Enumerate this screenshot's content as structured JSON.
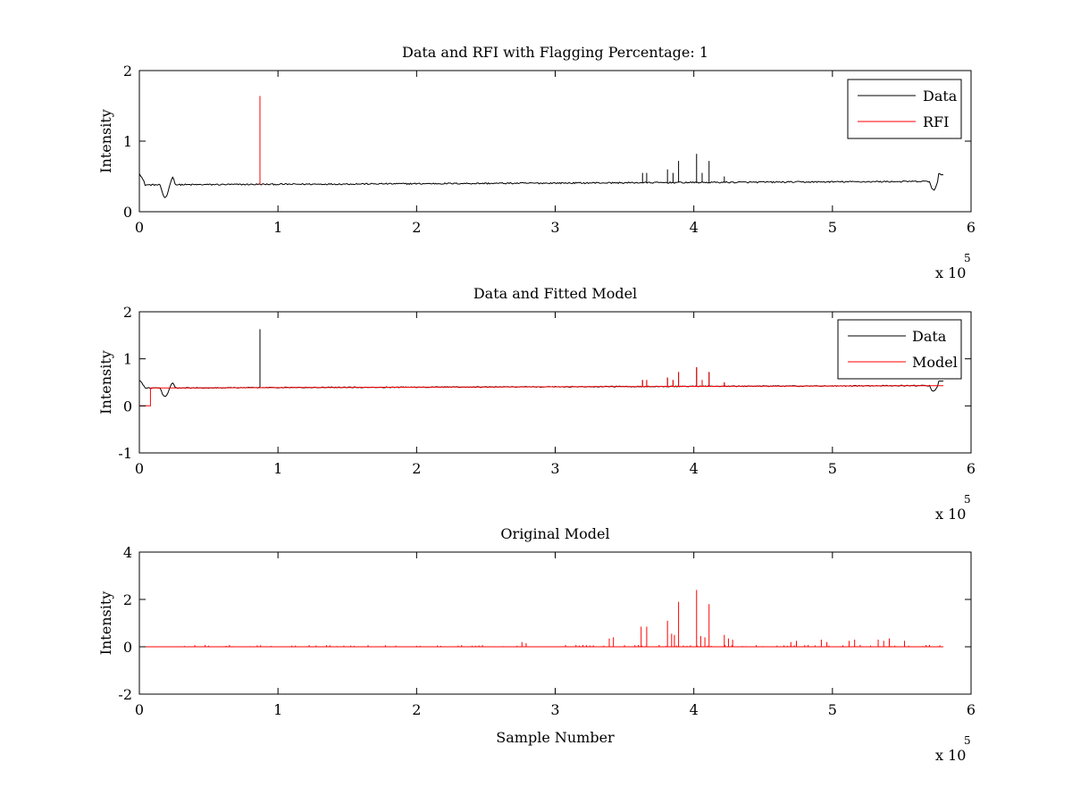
{
  "figure": {
    "background": "#ffffff"
  },
  "chart_data": [
    {
      "type": "line",
      "title": "Data and RFI with Flagging Percentage: 1",
      "xlabel": "",
      "ylabel": "Intensity",
      "xlim": [
        0,
        600000
      ],
      "ylim": [
        0,
        2
      ],
      "xticks": [
        "0",
        "1",
        "2",
        "3",
        "4",
        "5",
        "6"
      ],
      "yticks": [
        "0",
        "1",
        "2"
      ],
      "x_multiplier": {
        "base": "x 10",
        "exponent": "5"
      },
      "grid": false,
      "legend": {
        "position": "top-right",
        "entries": [
          "Data",
          "RFI"
        ]
      },
      "series": [
        {
          "name": "Data",
          "color": "#000000",
          "shape": "noisy-baseline",
          "baseline_start": 0.38,
          "baseline_end": 0.43,
          "x_end": 580000,
          "spikes": [
            [
              87000,
              1.63
            ],
            [
              363000,
              0.55
            ],
            [
              366000,
              0.55
            ],
            [
              381000,
              0.6
            ],
            [
              385000,
              0.55
            ],
            [
              389000,
              0.72
            ],
            [
              402000,
              0.82
            ],
            [
              406000,
              0.55
            ],
            [
              411000,
              0.72
            ],
            [
              422000,
              0.5
            ]
          ]
        },
        {
          "name": "RFI",
          "color": "#ff0000",
          "shape": "impulses",
          "baseline": 0.38,
          "spikes": [
            [
              87000,
              1.64
            ]
          ]
        }
      ]
    },
    {
      "type": "line",
      "title": "Data and Fitted Model",
      "xlabel": "",
      "ylabel": "Intensity",
      "xlim": [
        0,
        600000
      ],
      "ylim": [
        -1,
        2
      ],
      "xticks": [
        "0",
        "1",
        "2",
        "3",
        "4",
        "5",
        "6"
      ],
      "yticks": [
        "-1",
        "0",
        "1",
        "2"
      ],
      "x_multiplier": {
        "base": "x 10",
        "exponent": "5"
      },
      "grid": false,
      "legend": {
        "position": "top-right",
        "entries": [
          "Data",
          "Model"
        ]
      },
      "series": [
        {
          "name": "Data",
          "color": "#000000",
          "shape": "noisy-baseline",
          "baseline_start": 0.38,
          "baseline_end": 0.43,
          "x_end": 580000,
          "spikes": [
            [
              87000,
              1.63
            ],
            [
              363000,
              0.55
            ],
            [
              366000,
              0.55
            ],
            [
              381000,
              0.6
            ],
            [
              385000,
              0.55
            ],
            [
              389000,
              0.72
            ],
            [
              402000,
              0.82
            ],
            [
              406000,
              0.55
            ],
            [
              411000,
              0.72
            ],
            [
              422000,
              0.5
            ]
          ]
        },
        {
          "name": "Model",
          "color": "#ff0000",
          "shape": "step-baseline",
          "baseline_start": 0.38,
          "baseline_end": 0.43,
          "x_end": 580000,
          "initial_segment": {
            "x_end": 8000,
            "value": 0.0
          },
          "spikes": [
            [
              363000,
              0.55
            ],
            [
              366000,
              0.55
            ],
            [
              381000,
              0.6
            ],
            [
              385000,
              0.55
            ],
            [
              389000,
              0.72
            ],
            [
              402000,
              0.82
            ],
            [
              406000,
              0.55
            ],
            [
              411000,
              0.72
            ],
            [
              422000,
              0.5
            ]
          ]
        }
      ]
    },
    {
      "type": "line",
      "title": "Original Model",
      "xlabel": "Sample Number",
      "ylabel": "Intensity",
      "xlim": [
        0,
        600000
      ],
      "ylim": [
        -2,
        4
      ],
      "xticks": [
        "0",
        "1",
        "2",
        "3",
        "4",
        "5",
        "6"
      ],
      "yticks": [
        "-2",
        "0",
        "2",
        "4"
      ],
      "x_multiplier": {
        "base": "x 10",
        "exponent": "5"
      },
      "grid": false,
      "legend": null,
      "series": [
        {
          "name": "",
          "color": "#ff0000",
          "shape": "impulses",
          "baseline": 0.0,
          "x_end": 580000,
          "spikes": [
            [
              276000,
              0.2
            ],
            [
              279000,
              0.15
            ],
            [
              339000,
              0.35
            ],
            [
              342000,
              0.4
            ],
            [
              362000,
              0.85
            ],
            [
              366000,
              0.85
            ],
            [
              381000,
              1.1
            ],
            [
              384000,
              0.55
            ],
            [
              386000,
              0.5
            ],
            [
              389000,
              1.9
            ],
            [
              402000,
              2.4
            ],
            [
              405000,
              0.45
            ],
            [
              408000,
              0.4
            ],
            [
              411000,
              1.8
            ],
            [
              422000,
              0.5
            ],
            [
              425000,
              0.35
            ],
            [
              428000,
              0.3
            ],
            [
              470000,
              0.2
            ],
            [
              474000,
              0.25
            ],
            [
              492000,
              0.3
            ],
            [
              496000,
              0.2
            ],
            [
              512000,
              0.25
            ],
            [
              516000,
              0.3
            ],
            [
              533000,
              0.3
            ],
            [
              537000,
              0.25
            ],
            [
              541000,
              0.35
            ],
            [
              552000,
              0.25
            ]
          ]
        }
      ]
    }
  ]
}
